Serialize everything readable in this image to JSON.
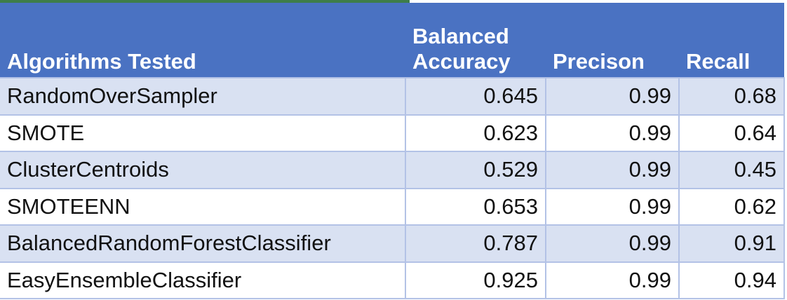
{
  "chart_data": {
    "type": "table",
    "columns": [
      "Algorithms Tested",
      "Balanced Accuracy",
      "Precison",
      "Recall"
    ],
    "header_lines": [
      [
        "Algorithms Tested"
      ],
      [
        "Balanced",
        "Accuracy"
      ],
      [
        "Precison"
      ],
      [
        "Recall"
      ]
    ],
    "rows": [
      [
        "RandomOverSampler",
        "0.645",
        "0.99",
        "0.68"
      ],
      [
        "SMOTE",
        "0.623",
        "0.99",
        "0.64"
      ],
      [
        "ClusterCentroids",
        "0.529",
        "0.99",
        "0.45"
      ],
      [
        "SMOTEENN",
        "0.653",
        "0.99",
        "0.62"
      ],
      [
        "BalancedRandomForestClassifier",
        "0.787",
        "0.99",
        "0.91"
      ],
      [
        "EasyEnsembleClassifier",
        "0.925",
        "0.99",
        "0.94"
      ]
    ],
    "colors": {
      "header_background": "#4a72c2",
      "header_text": "#ffffff",
      "band_row": "#d9e1f2",
      "plain_row": "#ffffff",
      "grid_line": "#b3c2e6",
      "selection_edge": "#3e7d4a"
    }
  }
}
